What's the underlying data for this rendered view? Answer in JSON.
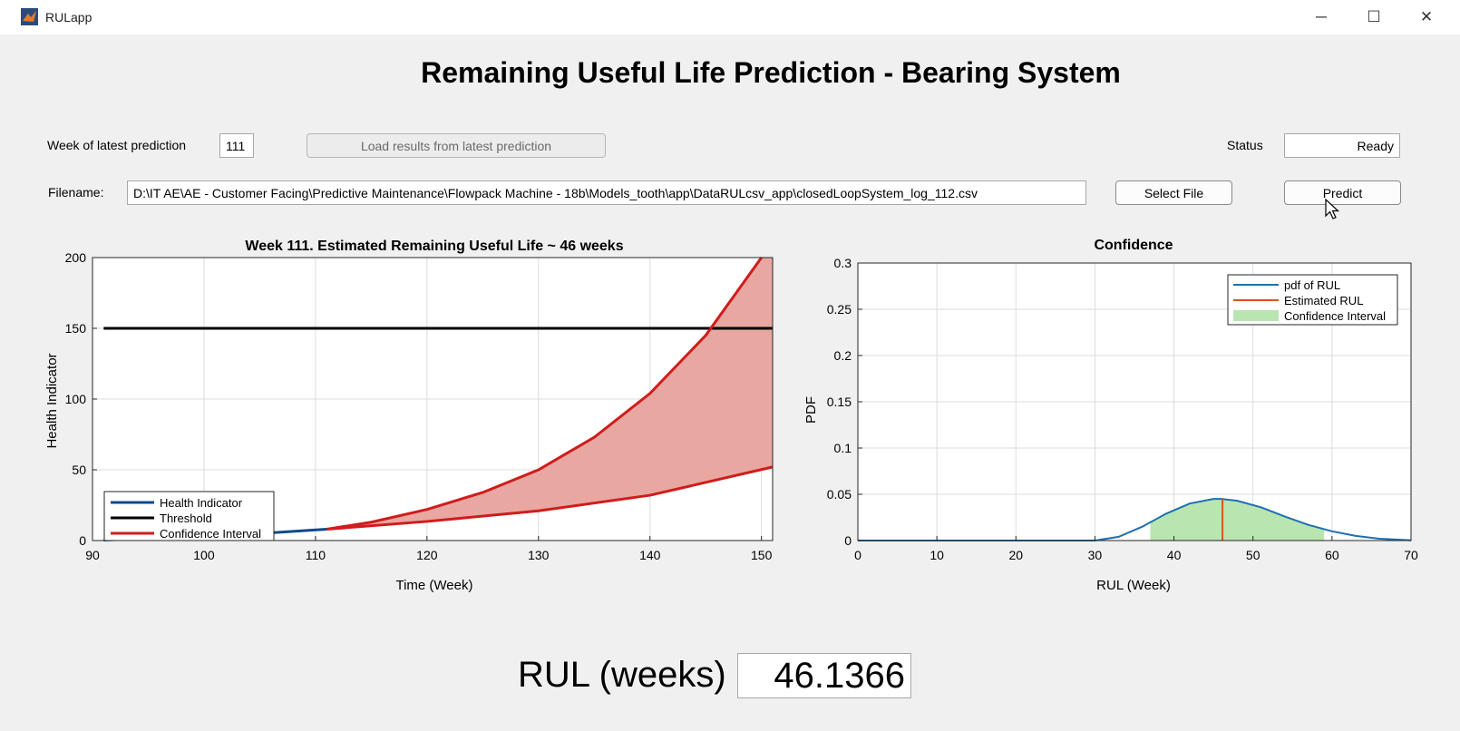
{
  "window": {
    "title": "RULapp",
    "minimize_glyph": "─",
    "maximize_glyph": "☐",
    "close_glyph": "✕"
  },
  "header": {
    "title": "Remaining Useful Life Prediction - Bearing System"
  },
  "controls": {
    "week_label": "Week of latest prediction",
    "week_value": "111",
    "load_button": "Load results from latest prediction",
    "status_label": "Status",
    "status_value": "Ready",
    "filename_label": "Filename:",
    "filename_value": "D:\\IT AE\\AE - Customer Facing\\Predictive Maintenance\\Flowpack Machine - 18b\\Models_tooth\\app\\DataRULcsv_app\\closedLoopSystem_log_112.csv",
    "select_file_button": "Select File",
    "predict_button": "Predict"
  },
  "colors": {
    "health_indicator": "#0b4a8c",
    "threshold": "#000000",
    "confidence_interval": "#d01c1c",
    "confidence_fill": "#e8a7a1",
    "pdf_line": "#1f6fb0",
    "estimated_rul": "#d95319",
    "pdf_fill": "#b9e6b0"
  },
  "chart_data": [
    {
      "type": "line",
      "title": "Week 111. Estimated Remaining Useful Life ~ 46 weeks",
      "xlabel": "Time (Week)",
      "ylabel": "Health Indicator",
      "xlim": [
        90,
        151
      ],
      "ylim": [
        0,
        200
      ],
      "xticks": [
        90,
        100,
        110,
        120,
        130,
        140,
        150
      ],
      "yticks": [
        0,
        50,
        100,
        150,
        200
      ],
      "grid": true,
      "legend": {
        "position": "bottom-left",
        "entries": [
          "Health Indicator",
          "Threshold",
          "Confidence Interval"
        ]
      },
      "series": [
        {
          "name": "Health Indicator",
          "x": [
            91,
            95,
            100,
            105,
            108,
            111
          ],
          "y": [
            0.3,
            1.6,
            3.2,
            5,
            6.5,
            8
          ]
        },
        {
          "name": "Threshold",
          "x": [
            91,
            151
          ],
          "y": [
            150,
            150
          ]
        },
        {
          "name": "Confidence Interval",
          "band": "upper",
          "x": [
            111,
            115,
            120,
            125,
            130,
            135,
            140,
            145,
            150
          ],
          "y": [
            8,
            13,
            22,
            34,
            50,
            73,
            104,
            145,
            200
          ]
        },
        {
          "name": "Confidence Interval",
          "band": "lower",
          "x": [
            111,
            120,
            130,
            140,
            151
          ],
          "y": [
            8,
            13.5,
            21,
            32,
            52
          ]
        }
      ]
    },
    {
      "type": "area",
      "title": "Confidence",
      "xlabel": "RUL (Week)",
      "ylabel": "PDF",
      "xlim": [
        0,
        70
      ],
      "ylim": [
        0,
        0.3
      ],
      "xticks": [
        0,
        10,
        20,
        30,
        40,
        50,
        60,
        70
      ],
      "yticks": [
        0,
        0.05,
        0.1,
        0.15,
        0.2,
        0.25,
        0.3
      ],
      "ytick_labels": [
        "0",
        "0.05",
        "0.1",
        "0.15",
        "0.2",
        "0.25",
        "0.3"
      ],
      "grid": true,
      "legend": {
        "position": "top-right",
        "entries": [
          "pdf of RUL",
          "Estimated RUL",
          "Confidence Interval"
        ]
      },
      "series": [
        {
          "name": "pdf of RUL",
          "x": [
            0,
            30,
            33,
            36,
            39,
            42,
            45,
            46,
            48,
            51,
            54,
            57,
            60,
            63,
            66,
            70
          ],
          "y": [
            0,
            0,
            0.004,
            0.015,
            0.029,
            0.04,
            0.045,
            0.045,
            0.043,
            0.036,
            0.026,
            0.017,
            0.01,
            0.005,
            0.002,
            0.0002
          ]
        },
        {
          "name": "Estimated RUL",
          "x": [
            46.14,
            46.14
          ],
          "y": [
            0,
            0.045
          ]
        },
        {
          "name": "Confidence Interval",
          "x_range": [
            37,
            59
          ]
        }
      ]
    }
  ],
  "result": {
    "label": "RUL (weeks)",
    "value": "46.1366"
  }
}
